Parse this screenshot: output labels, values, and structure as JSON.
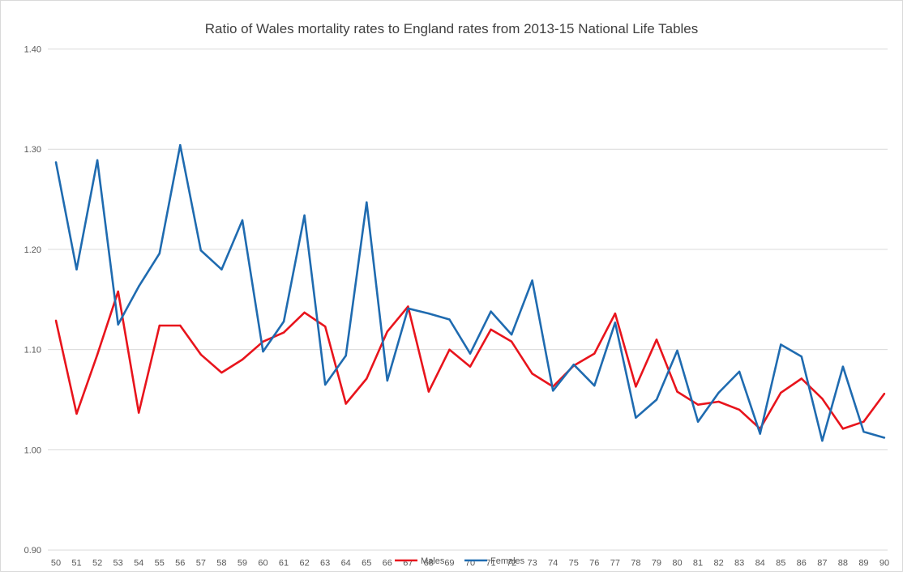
{
  "chart_data": {
    "type": "line",
    "title": "Ratio of Wales mortality rates to England rates from 2013-15 National Life Tables",
    "xlabel": "",
    "ylabel": "",
    "ylim": [
      0.9,
      1.4
    ],
    "yticks": [
      "0.90",
      "1.00",
      "1.10",
      "1.20",
      "1.30",
      "1.40"
    ],
    "yticks_values": [
      0.9,
      1.0,
      1.1,
      1.2,
      1.3,
      1.4
    ],
    "grid": true,
    "legend_position": "bottom",
    "categories": [
      "50",
      "51",
      "52",
      "53",
      "54",
      "55",
      "56",
      "57",
      "58",
      "59",
      "60",
      "61",
      "62",
      "63",
      "64",
      "65",
      "66",
      "67",
      "68",
      "69",
      "70",
      "71",
      "72",
      "73",
      "74",
      "75",
      "76",
      "77",
      "78",
      "79",
      "80",
      "81",
      "82",
      "83",
      "84",
      "85",
      "86",
      "87",
      "88",
      "89",
      "90"
    ],
    "series": [
      {
        "name": "Males",
        "color": "#e8141c",
        "values": [
          1.129,
          1.036,
          1.095,
          1.158,
          1.037,
          1.124,
          1.124,
          1.095,
          1.077,
          1.09,
          1.108,
          1.117,
          1.137,
          1.123,
          1.046,
          1.071,
          1.118,
          1.143,
          1.058,
          1.1,
          1.083,
          1.12,
          1.108,
          1.076,
          1.063,
          1.084,
          1.096,
          1.136,
          1.063,
          1.11,
          1.058,
          1.045,
          1.048,
          1.04,
          1.021,
          1.057,
          1.071,
          1.051,
          1.021,
          1.028,
          1.056
        ]
      },
      {
        "name": "Females",
        "color": "#1f6bb0",
        "values": [
          1.287,
          1.18,
          1.289,
          1.125,
          1.163,
          1.196,
          1.304,
          1.199,
          1.18,
          1.229,
          1.098,
          1.128,
          1.234,
          1.065,
          1.094,
          1.247,
          1.069,
          1.141,
          1.136,
          1.13,
          1.096,
          1.138,
          1.115,
          1.169,
          1.059,
          1.085,
          1.064,
          1.127,
          1.032,
          1.05,
          1.099,
          1.028,
          1.057,
          1.078,
          1.016,
          1.105,
          1.093,
          1.009,
          1.083,
          1.018,
          1.012
        ]
      }
    ]
  }
}
